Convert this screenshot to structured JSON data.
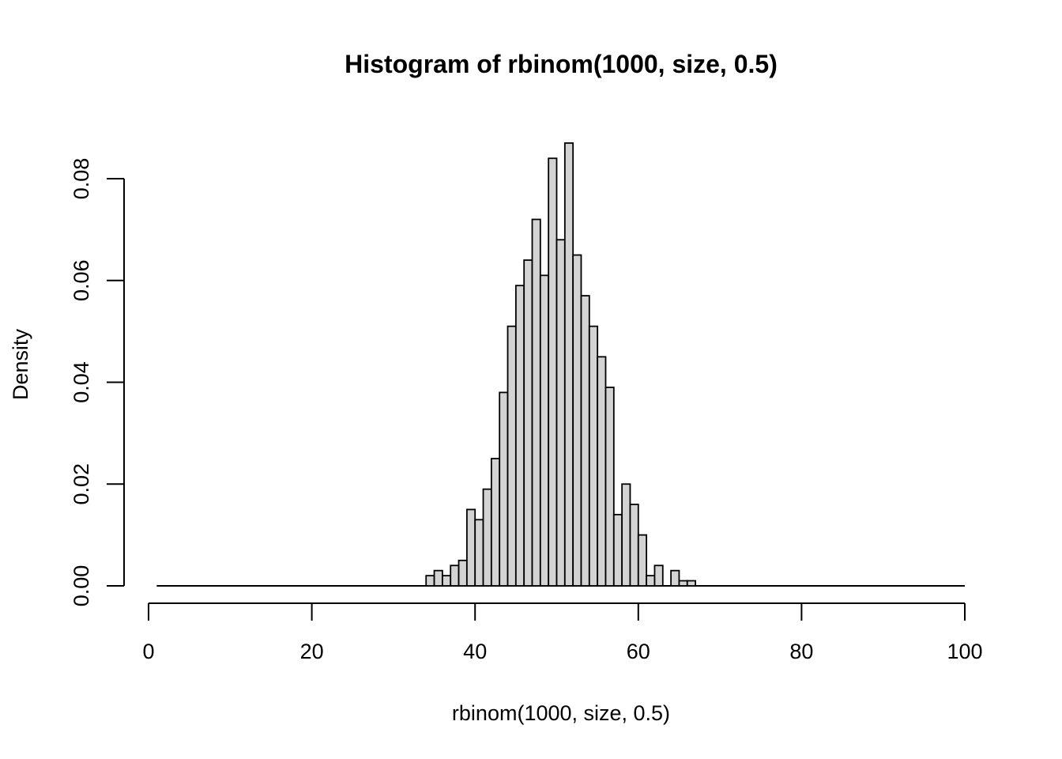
{
  "chart_data": {
    "type": "bar",
    "subtype": "histogram",
    "title": "Histogram of rbinom(1000, size, 0.5)",
    "xlabel": "rbinom(1000, size, 0.5)",
    "ylabel": "Density",
    "xlim": [
      0,
      100
    ],
    "ylim": [
      0,
      0.08
    ],
    "x_ticks": [
      0,
      20,
      40,
      60,
      80,
      100
    ],
    "x_tick_labels": [
      "0",
      "20",
      "40",
      "60",
      "80",
      "100"
    ],
    "y_ticks": [
      0.0,
      0.02,
      0.04,
      0.06,
      0.08
    ],
    "y_tick_labels": [
      "0.00",
      "0.02",
      "0.04",
      "0.06",
      "0.08"
    ],
    "bin_width": 1,
    "baseline_range": [
      1,
      100
    ],
    "bar_fill": "#d3d3d3",
    "bar_stroke": "#000000",
    "grid": false,
    "legend": "none",
    "bins": [
      {
        "x0": 34,
        "x1": 35,
        "density": 0.002
      },
      {
        "x0": 35,
        "x1": 36,
        "density": 0.003
      },
      {
        "x0": 36,
        "x1": 37,
        "density": 0.002
      },
      {
        "x0": 37,
        "x1": 38,
        "density": 0.004
      },
      {
        "x0": 38,
        "x1": 39,
        "density": 0.005
      },
      {
        "x0": 39,
        "x1": 40,
        "density": 0.015
      },
      {
        "x0": 40,
        "x1": 41,
        "density": 0.013
      },
      {
        "x0": 41,
        "x1": 42,
        "density": 0.019
      },
      {
        "x0": 42,
        "x1": 43,
        "density": 0.025
      },
      {
        "x0": 43,
        "x1": 44,
        "density": 0.038
      },
      {
        "x0": 44,
        "x1": 45,
        "density": 0.051
      },
      {
        "x0": 45,
        "x1": 46,
        "density": 0.059
      },
      {
        "x0": 46,
        "x1": 47,
        "density": 0.064
      },
      {
        "x0": 47,
        "x1": 48,
        "density": 0.072
      },
      {
        "x0": 48,
        "x1": 49,
        "density": 0.061
      },
      {
        "x0": 49,
        "x1": 50,
        "density": 0.084
      },
      {
        "x0": 50,
        "x1": 51,
        "density": 0.068
      },
      {
        "x0": 51,
        "x1": 52,
        "density": 0.087
      },
      {
        "x0": 52,
        "x1": 53,
        "density": 0.065
      },
      {
        "x0": 53,
        "x1": 54,
        "density": 0.057
      },
      {
        "x0": 54,
        "x1": 55,
        "density": 0.051
      },
      {
        "x0": 55,
        "x1": 56,
        "density": 0.045
      },
      {
        "x0": 56,
        "x1": 57,
        "density": 0.039
      },
      {
        "x0": 57,
        "x1": 58,
        "density": 0.014
      },
      {
        "x0": 58,
        "x1": 59,
        "density": 0.02
      },
      {
        "x0": 59,
        "x1": 60,
        "density": 0.016
      },
      {
        "x0": 60,
        "x1": 61,
        "density": 0.01
      },
      {
        "x0": 61,
        "x1": 62,
        "density": 0.002
      },
      {
        "x0": 62,
        "x1": 63,
        "density": 0.004
      },
      {
        "x0": 64,
        "x1": 65,
        "density": 0.003
      },
      {
        "x0": 65,
        "x1": 66,
        "density": 0.001
      },
      {
        "x0": 66,
        "x1": 67,
        "density": 0.001
      }
    ]
  }
}
